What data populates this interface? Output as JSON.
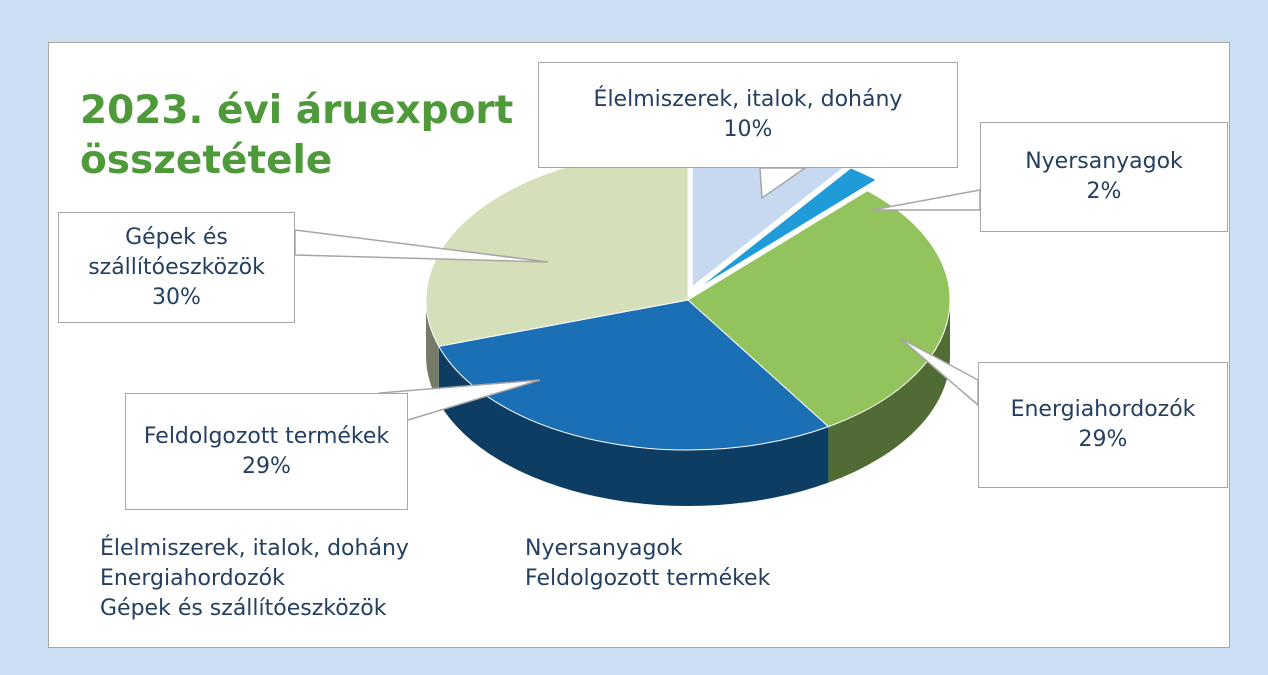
{
  "chart_data": {
    "type": "pie",
    "title": "2023. évi áruexport összetétele",
    "categories": [
      "Élelmiszerek, italok, dohány",
      "Nyersanyagok",
      "Energiahordozók",
      "Feldolgozott termékek",
      "Gépek és szállítóeszközök"
    ],
    "values": [
      10,
      2,
      29,
      29,
      30
    ],
    "value_labels": [
      "10%",
      "2%",
      "29%",
      "29%",
      "30%"
    ],
    "colors": [
      "#c6d9f1",
      "#1f9bd7",
      "#92c35c",
      "#1a6fb5",
      "#d5dfb9"
    ],
    "legend": "bottom"
  }
}
